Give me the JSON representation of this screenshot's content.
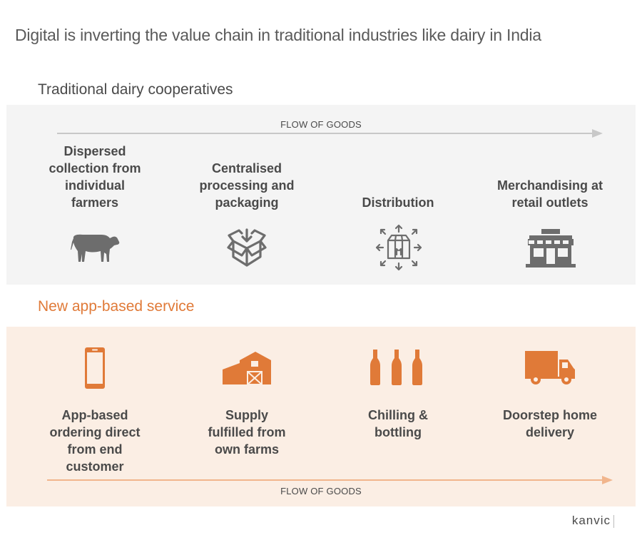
{
  "title": "Digital is inverting the value chain in traditional industries like dairy in India",
  "traditional": {
    "heading": "Traditional dairy cooperatives",
    "flow_label": "FLOW OF GOODS",
    "steps": [
      {
        "label": "Dispersed\ncollection from\nindividual\nfarmers",
        "icon": "cow-icon"
      },
      {
        "label": "Centralised\nprocessing and\npackaging",
        "icon": "open-box-icon"
      },
      {
        "label": "Distribution",
        "icon": "package-arrows-icon"
      },
      {
        "label": "Merchandising at\nretail outlets",
        "icon": "shop-icon"
      }
    ]
  },
  "new_service": {
    "heading": "New app-based service",
    "flow_label": "FLOW OF GOODS",
    "steps": [
      {
        "label": "App-based\nordering direct\nfrom end\ncustomer",
        "icon": "smartphone-icon"
      },
      {
        "label": "Supply\nfulfilled from\nown farms",
        "icon": "barn-icon"
      },
      {
        "label": "Chilling &\nbottling",
        "icon": "bottles-icon"
      },
      {
        "label": "Doorstep home\ndelivery",
        "icon": "delivery-truck-icon"
      }
    ]
  },
  "logo": "kanvic",
  "colors": {
    "accent": "#e07a38",
    "text": "#4a4a4a",
    "icon_gray": "#6d6d6d",
    "panel_gray": "#f4f4f4",
    "panel_peach": "#fbeee4",
    "arrow_gray": "#c8c8c8",
    "arrow_peach": "#f1b58c"
  }
}
